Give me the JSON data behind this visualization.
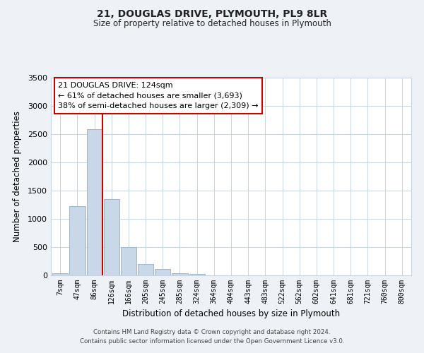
{
  "title": "21, DOUGLAS DRIVE, PLYMOUTH, PL9 8LR",
  "subtitle": "Size of property relative to detached houses in Plymouth",
  "xlabel": "Distribution of detached houses by size in Plymouth",
  "ylabel": "Number of detached properties",
  "bar_labels": [
    "7sqm",
    "47sqm",
    "86sqm",
    "126sqm",
    "166sqm",
    "205sqm",
    "245sqm",
    "285sqm",
    "324sqm",
    "364sqm",
    "404sqm",
    "443sqm",
    "483sqm",
    "522sqm",
    "562sqm",
    "602sqm",
    "641sqm",
    "681sqm",
    "721sqm",
    "760sqm",
    "800sqm"
  ],
  "bar_values": [
    40,
    1230,
    2590,
    1350,
    500,
    200,
    110,
    40,
    20,
    0,
    0,
    0,
    0,
    0,
    0,
    0,
    0,
    0,
    0,
    0,
    0
  ],
  "bar_color": "#c8d8e8",
  "bar_edge_color": "#a0b8cc",
  "vline_color": "#cc0000",
  "box_text_line1": "21 DOUGLAS DRIVE: 124sqm",
  "box_text_line2": "← 61% of detached houses are smaller (3,693)",
  "box_text_line3": "38% of semi-detached houses are larger (2,309) →",
  "box_edge_color": "#cc0000",
  "ylim": [
    0,
    3500
  ],
  "yticks": [
    0,
    500,
    1000,
    1500,
    2000,
    2500,
    3000,
    3500
  ],
  "footnote1": "Contains HM Land Registry data © Crown copyright and database right 2024.",
  "footnote2": "Contains public sector information licensed under the Open Government Licence v3.0.",
  "bg_color": "#eef2f7",
  "plot_bg_color": "#ffffff",
  "grid_color": "#c8d4e0"
}
